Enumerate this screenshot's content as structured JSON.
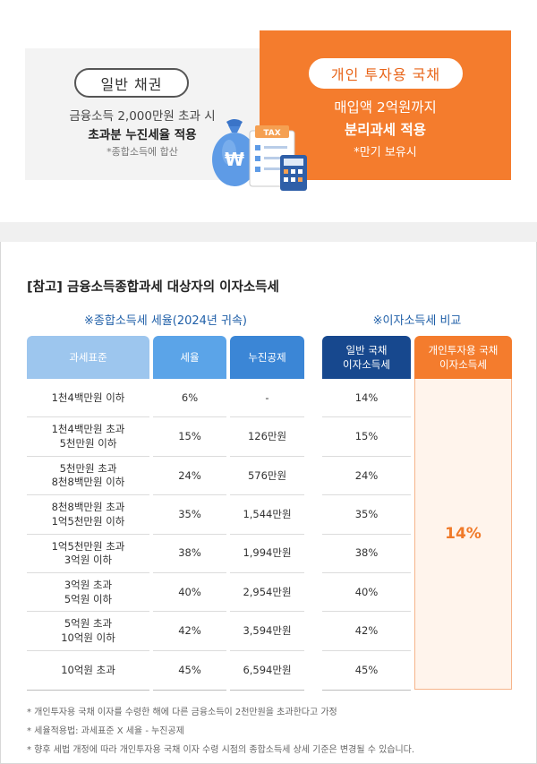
{
  "comparison": {
    "general_bond": {
      "badge": "일반 채권",
      "line1": "금융소득 2,000만원 초과 시",
      "line2": "초과분 누진세율 적용",
      "note": "*종합소득에 합산"
    },
    "personal_bond": {
      "badge": "개인 투자용 국채",
      "line1": "매입액 2억원까지",
      "line2": "분리과세 적용",
      "note": "*만기 보유시"
    },
    "illustration_label": "TAX",
    "money_symbol": "₩"
  },
  "reference": {
    "title": "[참고] 금융소득종합과세 대상자의 이자소득세",
    "left_subtitle": "※종합소득세 세율(2024년 귀속)",
    "right_subtitle": "※이자소득세 비교",
    "headers": [
      "과세표준",
      "세율",
      "누진공제",
      "일반 국채\n이자소득세",
      "개인투자용 국채\n이자소득세"
    ],
    "rows": [
      {
        "base": "1천4백만원 이하",
        "rate": "6%",
        "deduction": "-",
        "general": "14%"
      },
      {
        "base": "1천4백만원 초과\n5천만원 이하",
        "rate": "15%",
        "deduction": "126만원",
        "general": "15%"
      },
      {
        "base": "5천만원 초과\n8천8백만원 이하",
        "rate": "24%",
        "deduction": "576만원",
        "general": "24%"
      },
      {
        "base": "8천8백만원 초과\n1억5천만원 이하",
        "rate": "35%",
        "deduction": "1,544만원",
        "general": "35%"
      },
      {
        "base": "1억5천만원 초과\n3억원 이하",
        "rate": "38%",
        "deduction": "1,994만원",
        "general": "38%"
      },
      {
        "base": "3억원 초과\n5억원 이하",
        "rate": "40%",
        "deduction": "2,954만원",
        "general": "40%"
      },
      {
        "base": "5억원 초과\n10억원 이하",
        "rate": "42%",
        "deduction": "3,594만원",
        "general": "42%"
      },
      {
        "base": "10억원 초과",
        "rate": "45%",
        "deduction": "6,594만원",
        "general": "45%"
      }
    ],
    "personal_rate": "14%",
    "notes": [
      "* 개인투자용 국채 이자를 수령한 해에 다른 금융소득이 2천만원을 초과한다고 가정",
      "* 세율적용법: 과세표준 X 세율 - 누진공제",
      "* 향후 세법 개정에 따라 개인투자용 국채 이자 수령 시점의 종합소득세 상세 기준은 변경될 수 있습니다."
    ]
  },
  "colors": {
    "orange": "#f47c2d",
    "navy": "#17488e",
    "blue": "#3b86d6",
    "light_blue": "#9dc6ee"
  }
}
